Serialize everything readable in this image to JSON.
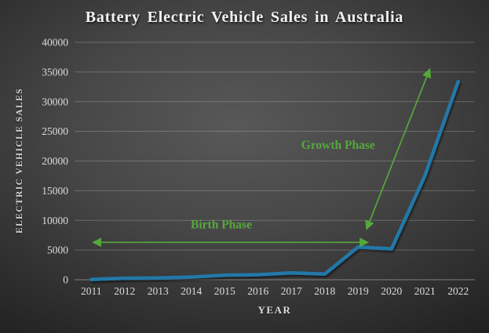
{
  "chart": {
    "title": "Battery Electric Vehicle Sales in Australia",
    "x_axis_title": "YEAR",
    "y_axis_title": "ELECTRIC VEHICLE SALES"
  },
  "chart_data": {
    "type": "line",
    "title": "Battery Electric Vehicle Sales in Australia",
    "xlabel": "YEAR",
    "ylabel": "ELECTRIC VEHICLE SALES",
    "categories": [
      "2011",
      "2012",
      "2013",
      "2014",
      "2015",
      "2016",
      "2017",
      "2018",
      "2019",
      "2020",
      "2021",
      "2022"
    ],
    "values": [
      50,
      250,
      300,
      450,
      750,
      850,
      1150,
      950,
      5500,
      5200,
      17500,
      33400
    ],
    "ylim": [
      0,
      40000
    ],
    "y_tick_step": 5000,
    "y_tick_labels": [
      "0",
      "5000",
      "10000",
      "15000",
      "20000",
      "25000",
      "30000",
      "35000",
      "40000"
    ],
    "grid": true,
    "legend": false,
    "line_color": "#2278A8",
    "annotation_color": "#55A83C",
    "annotations": [
      {
        "id": "birth-phase",
        "label": "Birth Phase",
        "arrow": {
          "from": {
            "year": 2011.05,
            "value": 6300
          },
          "to": {
            "year": 2019.3,
            "value": 6300
          }
        },
        "label_at": {
          "year": 2014.9,
          "value": 9300
        }
      },
      {
        "id": "growth-phase",
        "label": "Growth Phase",
        "arrow": {
          "from": {
            "year": 2019.25,
            "value": 8500
          },
          "to": {
            "year": 2021.15,
            "value": 35500
          }
        },
        "label_at": {
          "year": 2018.4,
          "value": 22700
        }
      }
    ]
  },
  "colors": {
    "background_center": "#585858",
    "background_edge": "#202020",
    "title_text": "#F2F2F2",
    "tick_text": "#DCDCDC",
    "gridline": "rgba(255,255,255,0.22)"
  }
}
